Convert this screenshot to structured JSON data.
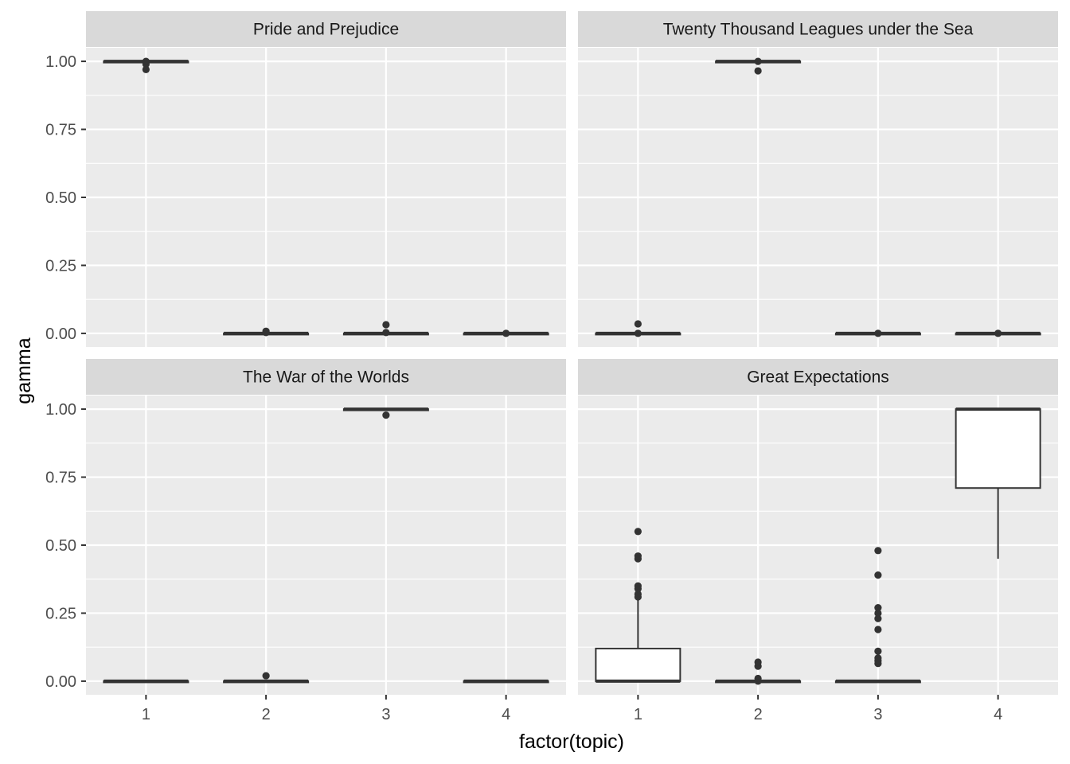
{
  "chart_data": {
    "type": "boxplot",
    "xlabel": "factor(topic)",
    "ylabel": "gamma",
    "categories": [
      "1",
      "2",
      "3",
      "4"
    ],
    "ylim": [
      -0.05,
      1.05
    ],
    "yticks": [
      0.0,
      0.25,
      0.5,
      0.75,
      1.0
    ],
    "ytick_labels": [
      "0.00",
      "0.25",
      "0.50",
      "0.75",
      "1.00"
    ],
    "grid": true,
    "colors": {
      "panel_bg": "#ebebeb",
      "strip_bg": "#d9d9d9",
      "grid": "#ffffff",
      "box_line": "#333333",
      "box_fill": "#ffffff",
      "point": "#333333"
    },
    "panels": [
      {
        "title": "Pride and Prejudice",
        "boxes": [
          {
            "category": "1",
            "q1": 0.998,
            "median": 1.0,
            "q3": 1.0,
            "whisker_low": 0.995,
            "whisker_high": 1.0,
            "outliers": [
              0.97,
              0.99,
              1.0
            ]
          },
          {
            "category": "2",
            "q1": 0.0,
            "median": 0.0,
            "q3": 0.0,
            "whisker_low": 0.0,
            "whisker_high": 0.0,
            "outliers": [
              0.003,
              0.008
            ]
          },
          {
            "category": "3",
            "q1": 0.0,
            "median": 0.0,
            "q3": 0.0,
            "whisker_low": 0.0,
            "whisker_high": 0.0,
            "outliers": [
              0.003,
              0.032
            ]
          },
          {
            "category": "4",
            "q1": 0.0,
            "median": 0.0,
            "q3": 0.0,
            "whisker_low": 0.0,
            "whisker_high": 0.0,
            "outliers": [
              0.0
            ]
          }
        ]
      },
      {
        "title": "Twenty Thousand Leagues under the Sea",
        "boxes": [
          {
            "category": "1",
            "q1": 0.0,
            "median": 0.0,
            "q3": 0.0,
            "whisker_low": 0.0,
            "whisker_high": 0.0,
            "outliers": [
              0.0,
              0.035
            ]
          },
          {
            "category": "2",
            "q1": 0.998,
            "median": 1.0,
            "q3": 1.0,
            "whisker_low": 0.995,
            "whisker_high": 1.0,
            "outliers": [
              0.965,
              1.0
            ]
          },
          {
            "category": "3",
            "q1": 0.0,
            "median": 0.0,
            "q3": 0.0,
            "whisker_low": 0.0,
            "whisker_high": 0.0,
            "outliers": [
              0.0
            ]
          },
          {
            "category": "4",
            "q1": 0.0,
            "median": 0.0,
            "q3": 0.0,
            "whisker_low": 0.0,
            "whisker_high": 0.0,
            "outliers": [
              0.0
            ]
          }
        ]
      },
      {
        "title": "The War of the Worlds",
        "boxes": [
          {
            "category": "1",
            "q1": 0.0,
            "median": 0.0,
            "q3": 0.0,
            "whisker_low": 0.0,
            "whisker_high": 0.0,
            "outliers": []
          },
          {
            "category": "2",
            "q1": 0.0,
            "median": 0.0,
            "q3": 0.0,
            "whisker_low": 0.0,
            "whisker_high": 0.0,
            "outliers": [
              0.02
            ]
          },
          {
            "category": "3",
            "q1": 0.998,
            "median": 1.0,
            "q3": 1.0,
            "whisker_low": 0.995,
            "whisker_high": 1.0,
            "outliers": [
              0.978
            ]
          },
          {
            "category": "4",
            "q1": 0.0,
            "median": 0.0,
            "q3": 0.0,
            "whisker_low": 0.0,
            "whisker_high": 0.0,
            "outliers": []
          }
        ]
      },
      {
        "title": "Great Expectations",
        "boxes": [
          {
            "category": "1",
            "q1": 0.0,
            "median": 0.0,
            "q3": 0.12,
            "whisker_low": 0.0,
            "whisker_high": 0.3,
            "outliers": [
              0.31,
              0.32,
              0.34,
              0.35,
              0.45,
              0.46,
              0.55
            ]
          },
          {
            "category": "2",
            "q1": 0.0,
            "median": 0.0,
            "q3": 0.0,
            "whisker_low": 0.0,
            "whisker_high": 0.0,
            "outliers": [
              0.0,
              0.01,
              0.055,
              0.07
            ]
          },
          {
            "category": "3",
            "q1": 0.0,
            "median": 0.0,
            "q3": 0.0,
            "whisker_low": 0.0,
            "whisker_high": 0.0,
            "outliers": [
              0.065,
              0.075,
              0.085,
              0.11,
              0.19,
              0.23,
              0.25,
              0.27,
              0.39,
              0.48
            ]
          },
          {
            "category": "4",
            "q1": 0.71,
            "median": 1.0,
            "q3": 1.0,
            "whisker_low": 0.45,
            "whisker_high": 1.0,
            "outliers": []
          }
        ]
      }
    ]
  }
}
